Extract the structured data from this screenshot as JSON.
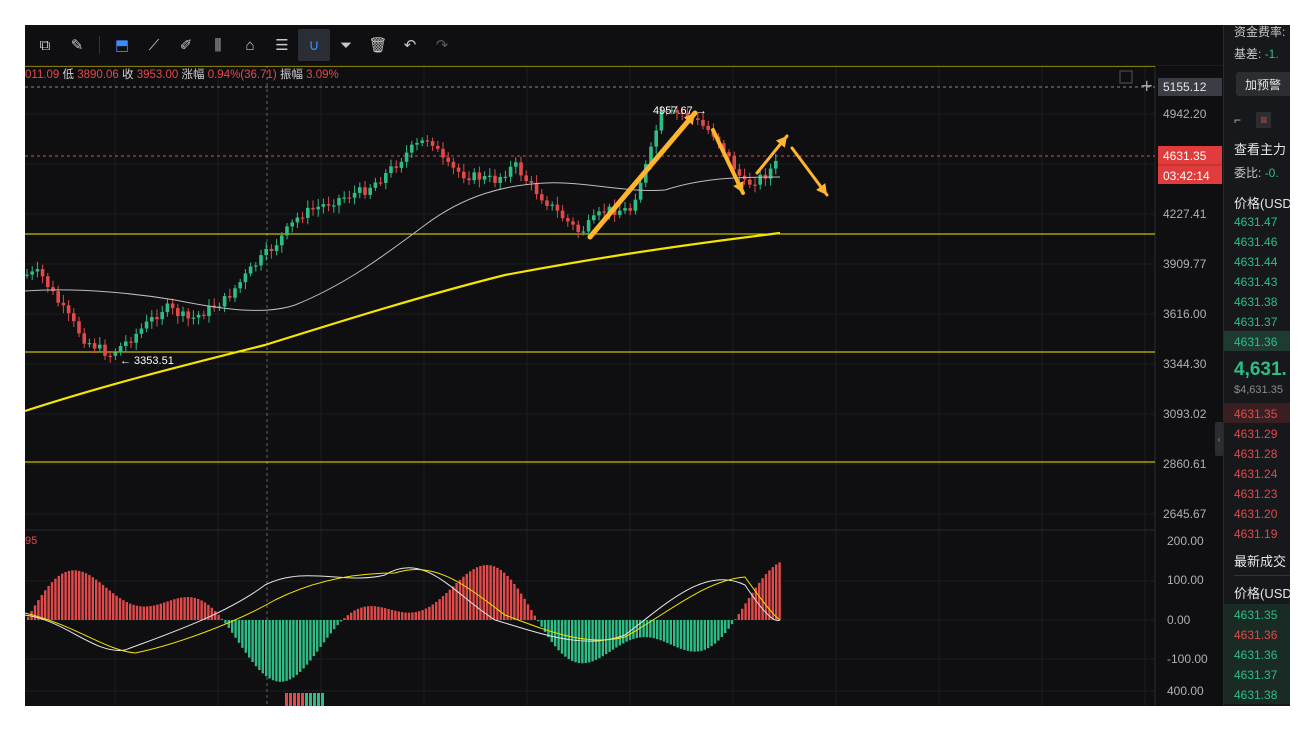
{
  "toolbar": {
    "tools": [
      "layout-icon",
      "settings-pen-icon",
      "bookmark-icon",
      "ruler-icon",
      "draw-icon",
      "candles-icon",
      "delete-box-icon",
      "note-icon",
      "magnet-icon",
      "filter-icon",
      "trash-icon",
      "undo-icon",
      "redo-icon"
    ]
  },
  "ohlc": {
    "open_tail": "011.09",
    "low_label": "低",
    "low": "3890.06",
    "close_label": "收",
    "close": "3953.00",
    "change_label": "涨幅",
    "change": "0.94%(36.71)",
    "amp_label": "振幅",
    "amp": "3.09%"
  },
  "price_axis": {
    "ticks": [
      "4942.20",
      "4227.41",
      "3909.77",
      "3616.00",
      "3344.30",
      "3093.02",
      "2860.61",
      "2645.67"
    ],
    "crosshair_price": "5155.12",
    "current_price": "4631.35",
    "countdown": "03:42:14"
  },
  "annotations": {
    "high_label": "4957.67 →",
    "low_label": "← 3353.51"
  },
  "macd": {
    "left_label": "95",
    "ticks": [
      "200.00",
      "100.00",
      "0.00",
      "-100.00",
      "400.00"
    ]
  },
  "right_panel": {
    "funding_label": "资金费率:",
    "basis_label": "基差:",
    "basis_value": "-1.",
    "alert_button": "加预警",
    "main_force_label": "查看主力",
    "ratio_label": "委比:",
    "ratio_value": "-0.",
    "price_header": "价格(USD",
    "asks": [
      "4631.47",
      "4631.46",
      "4631.44",
      "4631.43",
      "4631.38",
      "4631.37",
      "4631.36"
    ],
    "last_price": "4,631.",
    "last_price_usd": "$4,631.35",
    "bids": [
      "4631.35",
      "4631.29",
      "4631.28",
      "4631.24",
      "4631.23",
      "4631.20",
      "4631.19"
    ],
    "trades_title": "最新成交",
    "trades_header": "价格(USD",
    "trades": [
      {
        "price": "4631.35",
        "side": "buy"
      },
      {
        "price": "4631.36",
        "side": "sell"
      },
      {
        "price": "4631.36",
        "side": "buy"
      },
      {
        "price": "4631.37",
        "side": "buy"
      },
      {
        "price": "4631.38",
        "side": "buy"
      }
    ]
  },
  "colors": {
    "up": "#2ebd85",
    "down": "#e04a4a",
    "accent": "#3a8cff",
    "support": "#f5e400",
    "arrow": "#ffb52e"
  }
}
